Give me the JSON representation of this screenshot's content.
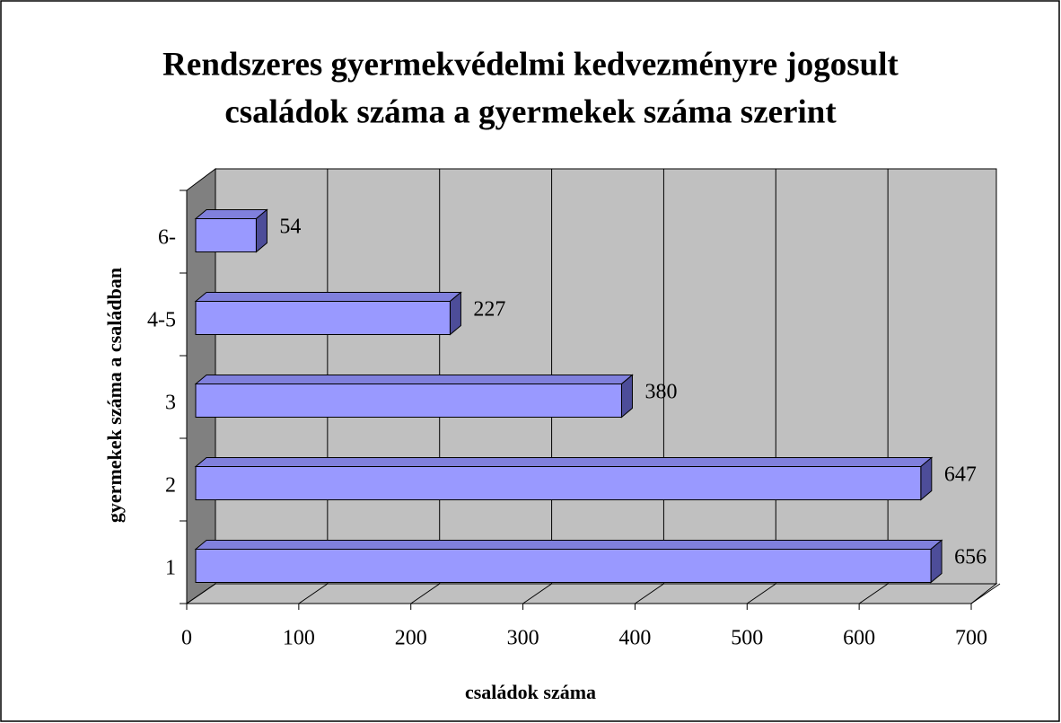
{
  "chart_data": {
    "type": "bar3d",
    "orientation": "horizontal",
    "title": [
      "Rendszeres gyermekvédelmi kedvezményre jogosult",
      "családok száma a gyermekek száma szerint"
    ],
    "x_label": "családok száma",
    "y_label": "gyermekek száma a családban",
    "categories": [
      "1",
      "2",
      "3",
      "4-5",
      "6-"
    ],
    "values": [
      656,
      647,
      380,
      227,
      54
    ],
    "color": "#9999ff",
    "xlim": [
      0,
      700
    ],
    "xticks": [
      0,
      100,
      200,
      300,
      400,
      500,
      600,
      700
    ],
    "grid": true
  }
}
